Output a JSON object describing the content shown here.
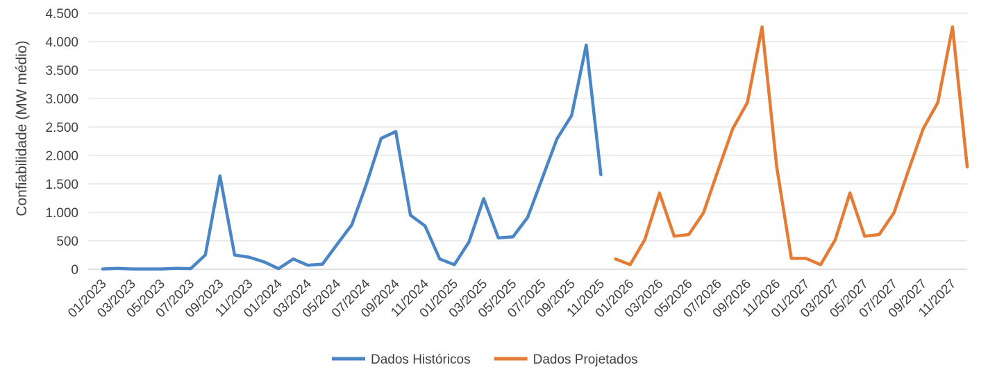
{
  "chart_data": {
    "type": "line",
    "title": "",
    "xlabel": "",
    "ylabel": "Confiabilidade (MW médio)",
    "ylim": [
      0,
      4500
    ],
    "yticks": [
      0,
      500,
      1000,
      1500,
      2000,
      2500,
      3000,
      3500,
      4000,
      4500
    ],
    "ytick_labels": [
      "0",
      "500",
      "1.000",
      "1.500",
      "2.000",
      "2.500",
      "3.000",
      "3.500",
      "4.000",
      "4.500"
    ],
    "grid": true,
    "legend_position": "bottom",
    "categories": [
      "01/2023",
      "02/2023",
      "03/2023",
      "04/2023",
      "05/2023",
      "06/2023",
      "07/2023",
      "08/2023",
      "09/2023",
      "10/2023",
      "11/2023",
      "12/2023",
      "01/2024",
      "02/2024",
      "03/2024",
      "04/2024",
      "05/2024",
      "06/2024",
      "07/2024",
      "08/2024",
      "09/2024",
      "10/2024",
      "11/2024",
      "12/2024",
      "01/2025",
      "02/2025",
      "03/2025",
      "04/2025",
      "05/2025",
      "06/2025",
      "07/2025",
      "08/2025",
      "09/2025",
      "10/2025",
      "11/2025",
      "12/2025",
      "01/2026",
      "02/2026",
      "03/2026",
      "04/2026",
      "05/2026",
      "06/2026",
      "07/2026",
      "08/2026",
      "09/2026",
      "10/2026",
      "11/2026",
      "12/2026",
      "01/2027",
      "02/2027",
      "03/2027",
      "04/2027",
      "05/2027",
      "06/2027",
      "07/2027",
      "08/2027",
      "09/2027",
      "10/2027",
      "11/2027",
      "12/2027"
    ],
    "xtick_labels": [
      "01/2023",
      "03/2023",
      "05/2023",
      "07/2023",
      "09/2023",
      "11/2023",
      "01/2024",
      "03/2024",
      "05/2024",
      "07/2024",
      "09/2024",
      "11/2024",
      "01/2025",
      "03/2025",
      "05/2025",
      "07/2025",
      "09/2025",
      "11/2025",
      "01/2026",
      "03/2026",
      "05/2026",
      "07/2026",
      "09/2026",
      "11/2026",
      "01/2027",
      "03/2027",
      "05/2027",
      "07/2027",
      "09/2027",
      "11/2027"
    ],
    "series": [
      {
        "name": "Dados Históricos",
        "color": "#4A86C5",
        "values": [
          5,
          15,
          5,
          5,
          5,
          15,
          10,
          250,
          1640,
          250,
          210,
          130,
          10,
          180,
          70,
          90,
          440,
          780,
          1500,
          2300,
          2420,
          950,
          760,
          180,
          80,
          480,
          1240,
          550,
          570,
          910,
          1600,
          2290,
          2700,
          3940,
          1660,
          null,
          null,
          null,
          null,
          null,
          null,
          null,
          null,
          null,
          null,
          null,
          null,
          null,
          null,
          null,
          null,
          null,
          null,
          null,
          null,
          null,
          null,
          null,
          null,
          null
        ]
      },
      {
        "name": "Dados Projetados",
        "color": "#E57C36",
        "values": [
          null,
          null,
          null,
          null,
          null,
          null,
          null,
          null,
          null,
          null,
          null,
          null,
          null,
          null,
          null,
          null,
          null,
          null,
          null,
          null,
          null,
          null,
          null,
          null,
          null,
          null,
          null,
          null,
          null,
          null,
          null,
          null,
          null,
          null,
          null,
          180,
          80,
          520,
          1340,
          580,
          610,
          990,
          1740,
          2470,
          2930,
          4260,
          1800,
          190,
          190,
          80,
          520,
          1340,
          580,
          610,
          990,
          1740,
          2470,
          2930,
          4260,
          1800
        ]
      }
    ]
  }
}
